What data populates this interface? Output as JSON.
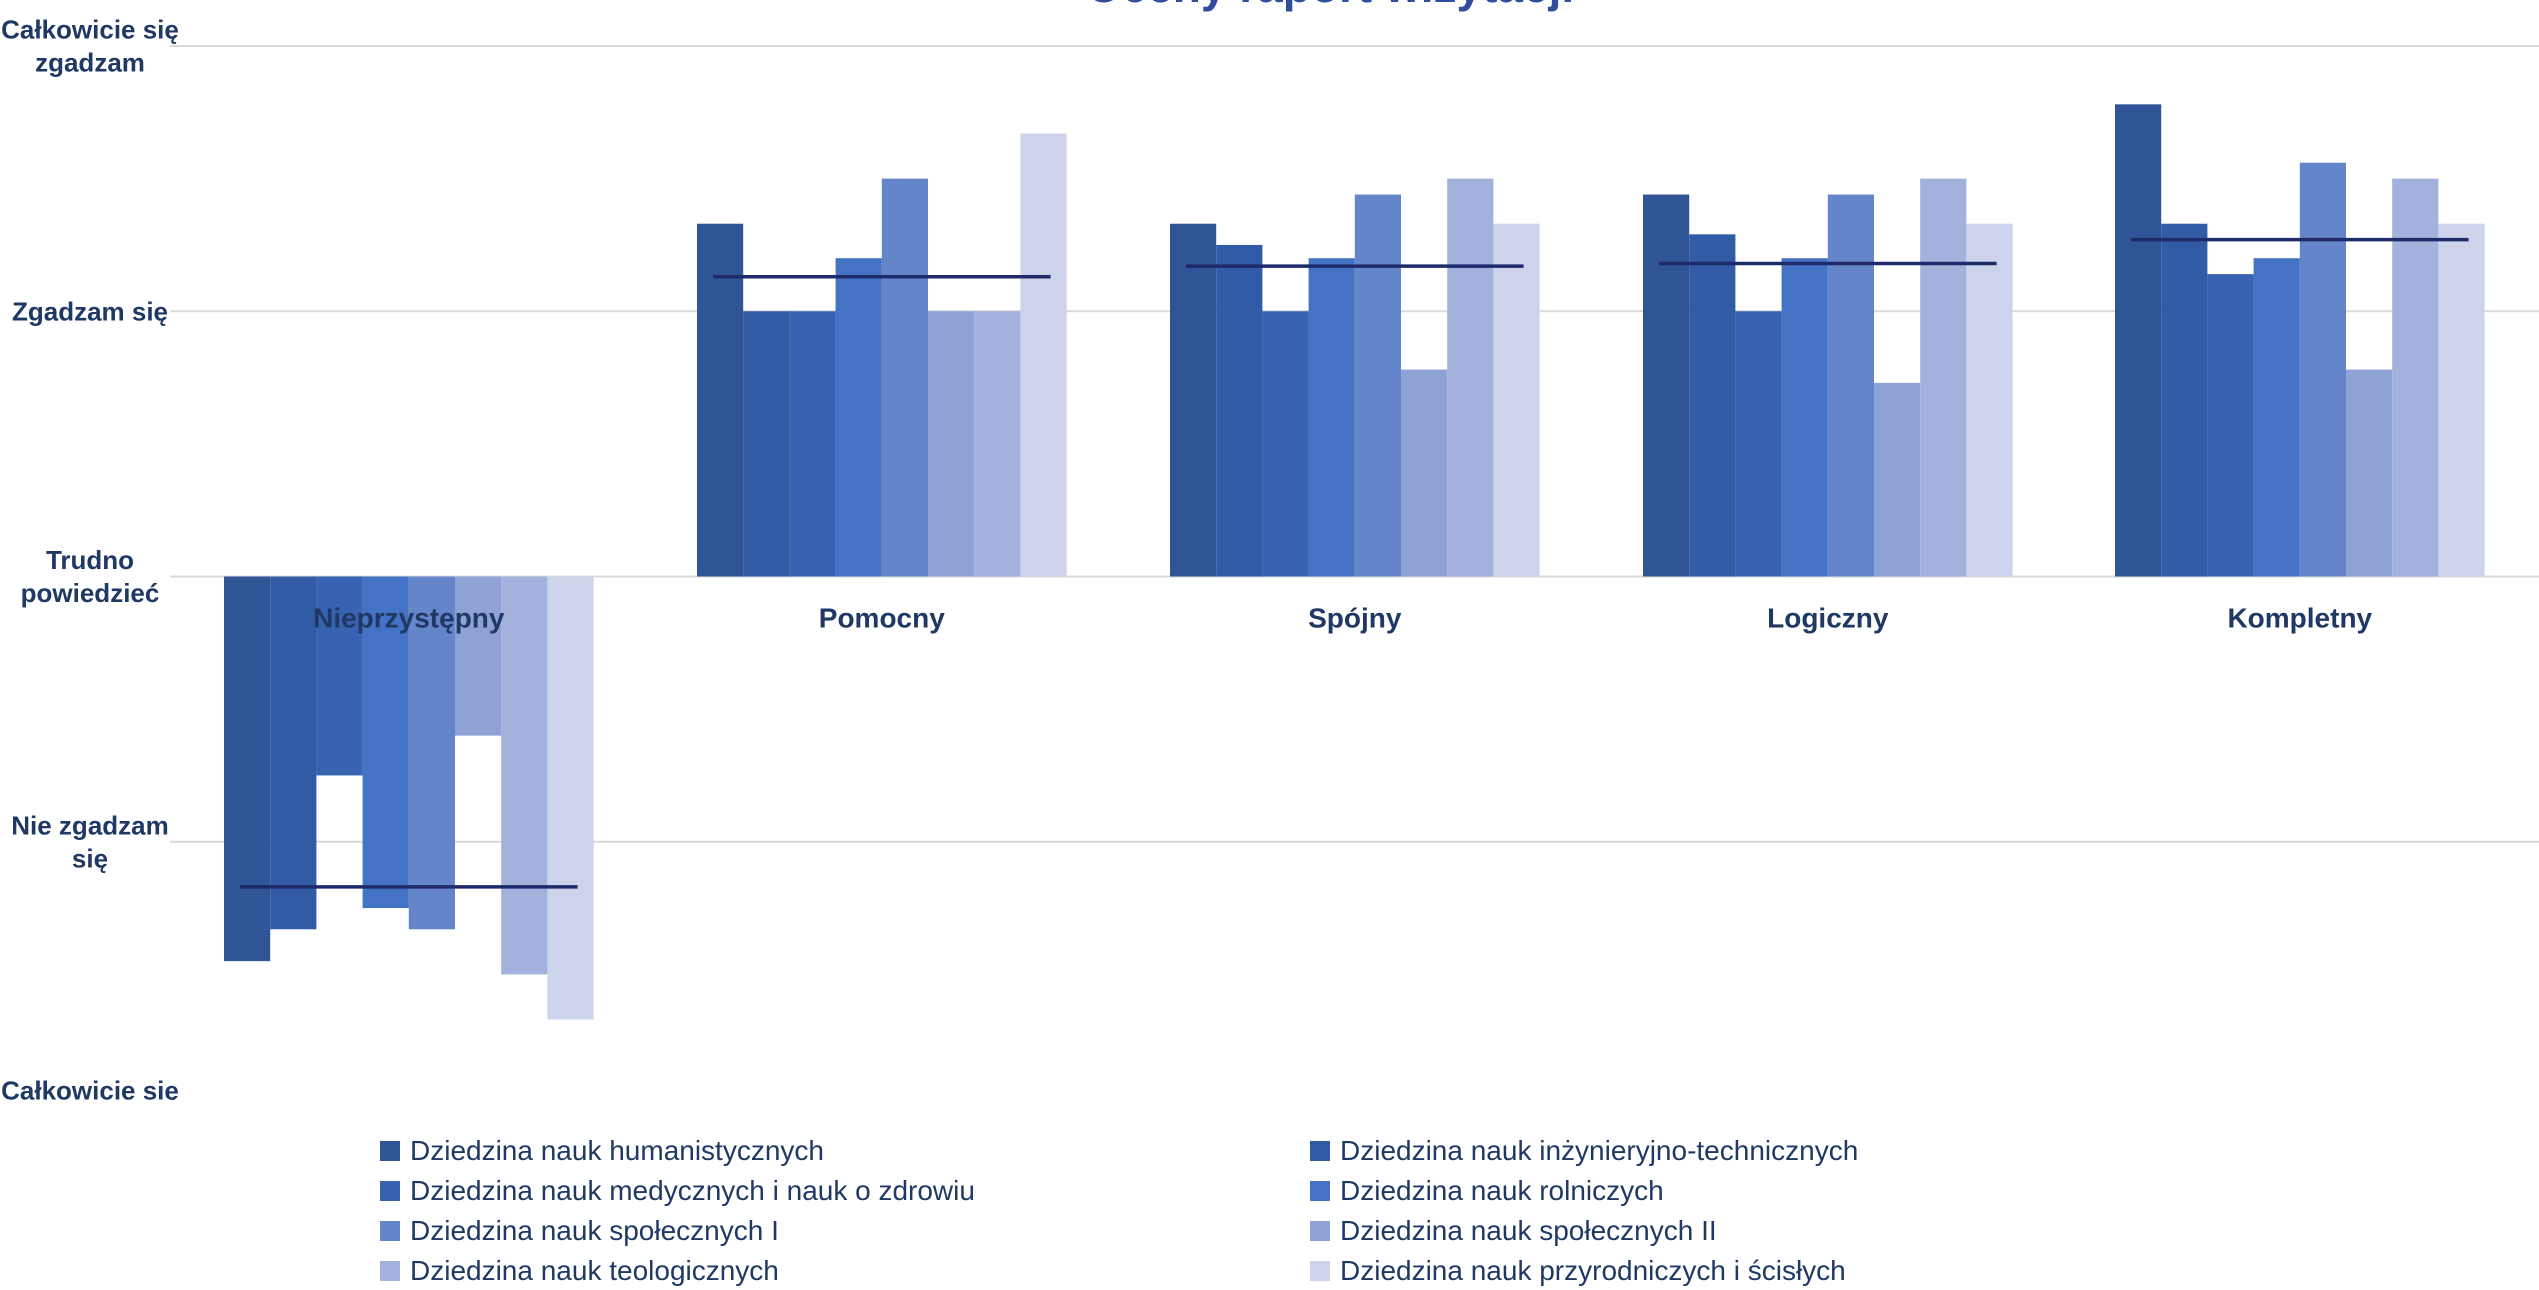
{
  "chart_data": {
    "type": "bar",
    "title": "Oceny raport wizytacji",
    "ylabel": "",
    "xlabel": "",
    "y_ticks": [
      {
        "value": 2,
        "label": "Całkowicie się zgadzam"
      },
      {
        "value": 1,
        "label": "Zgadzam się"
      },
      {
        "value": 0,
        "label": "Trudno powiedzieć"
      },
      {
        "value": -1,
        "label": "Nie zgadzam się"
      },
      {
        "value": -2,
        "label": "Całkowicie się nie zgadzam"
      }
    ],
    "ylim": [
      -2,
      2
    ],
    "grid": true,
    "legend_position": "bottom",
    "categories": [
      "Nieprzystępny",
      "Pomocny",
      "Spójny",
      "Logiczny",
      "Kompletny"
    ],
    "series": [
      {
        "name": "Dziedzina nauk humanistycznych",
        "color": "#2f5597",
        "values": [
          -1.45,
          1.33,
          1.33,
          1.44,
          1.78
        ]
      },
      {
        "name": "Dziedzina nauk inżynieryjno-technicznych",
        "color": "#325ba6",
        "values": [
          -1.33,
          1.0,
          1.25,
          1.29,
          1.33
        ]
      },
      {
        "name": "Dziedzina nauk medycznych i nauk o zdrowiu",
        "color": "#3863b3",
        "values": [
          -0.75,
          1.0,
          1.0,
          1.0,
          1.14
        ]
      },
      {
        "name": "Dziedzina nauk rolniczych",
        "color": "#4472c4",
        "values": [
          -1.25,
          1.2,
          1.2,
          1.2,
          1.2
        ]
      },
      {
        "name": "Dziedzina nauk społecznych  I",
        "color": "#6585cb",
        "values": [
          -1.33,
          1.5,
          1.44,
          1.44,
          1.56
        ]
      },
      {
        "name": "Dziedzina nauk społecznych II",
        "color": "#8ea2d6",
        "values": [
          -0.6,
          1.0,
          0.78,
          0.73,
          0.78
        ]
      },
      {
        "name": "Dziedzina nauk teologicznych",
        "color": "#a3b1dd",
        "values": [
          -1.5,
          1.0,
          1.5,
          1.5,
          1.5
        ]
      },
      {
        "name": "Dziedzina nauk przyrodniczych i ścisłych",
        "color": "#ccd3ea",
        "values": [
          -1.67,
          1.67,
          1.33,
          1.33,
          1.33
        ]
      }
    ],
    "averages": [
      -1.17,
      1.13,
      1.17,
      1.18,
      1.27
    ],
    "average_color": "#1f2a6b",
    "colors": {
      "text": "#1f3864",
      "grid": "#d9d9d9",
      "category_label": "#203864"
    }
  }
}
